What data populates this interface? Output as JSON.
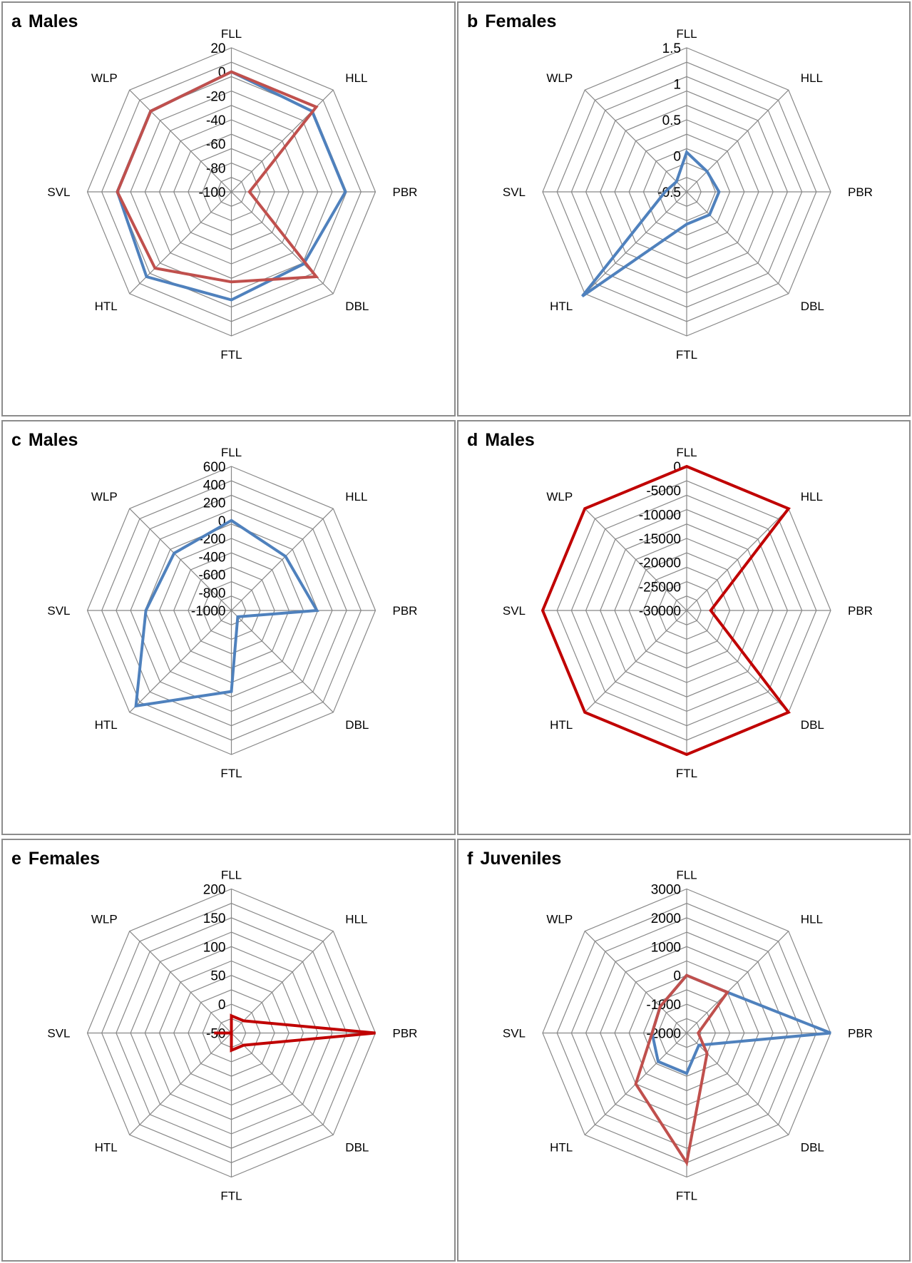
{
  "axes": [
    "FLL",
    "HLL",
    "PBR",
    "DBL",
    "FTL",
    "HTL",
    "SVL",
    "WLP"
  ],
  "colors": {
    "blue": "#4f81bd",
    "red": "#c0504d",
    "dark_red": "#c00000",
    "grid": "#888888"
  },
  "chart_data": [
    {
      "letter": "a",
      "title": "Males",
      "type": "radar",
      "axes": [
        "FLL",
        "HLL",
        "PBR",
        "DBL",
        "FTL",
        "HTL",
        "SVL",
        "WLP"
      ],
      "ylim": [
        -100,
        20
      ],
      "ticks": [
        "20",
        "0",
        "-20",
        "-40",
        "-60",
        "-80",
        "-100"
      ],
      "series": [
        {
          "color": "#4f81bd",
          "values": [
            0,
            -5,
            -5,
            -15,
            -10,
            0,
            -5,
            -5
          ]
        },
        {
          "color": "#c0504d",
          "values": [
            0,
            0,
            -85,
            0,
            -25,
            -10,
            -5,
            -5
          ]
        }
      ]
    },
    {
      "letter": "b",
      "title": "Females",
      "type": "radar",
      "axes": [
        "FLL",
        "HLL",
        "PBR",
        "DBL",
        "FTL",
        "HTL",
        "SVL",
        "WLP"
      ],
      "ylim": [
        -0.5,
        1.5
      ],
      "ticks": [
        "1.5",
        "1",
        "0.5",
        "0",
        "-0.5"
      ],
      "series": [
        {
          "color": "#4f81bd",
          "values": [
            0.05,
            -0.1,
            -0.05,
            -0.05,
            -0.05,
            1.55,
            -0.2,
            -0.3
          ]
        }
      ]
    },
    {
      "letter": "c",
      "title": "Males",
      "type": "radar",
      "axes": [
        "FLL",
        "HLL",
        "PBR",
        "DBL",
        "FTL",
        "HTL",
        "SVL",
        "WLP"
      ],
      "ylim": [
        -1000,
        600
      ],
      "ticks": [
        "600",
        "400",
        "200",
        "0",
        "-200",
        "-400",
        "-600",
        "-800",
        "-1000"
      ],
      "series": [
        {
          "color": "#4f81bd",
          "values": [
            0,
            -150,
            -50,
            -900,
            -100,
            500,
            -50,
            -100
          ]
        }
      ]
    },
    {
      "letter": "d",
      "title": "Males",
      "type": "radar",
      "axes": [
        "FLL",
        "HLL",
        "PBR",
        "DBL",
        "FTL",
        "HTL",
        "SVL",
        "WLP"
      ],
      "ylim": [
        -30000,
        0
      ],
      "ticks": [
        "0",
        "-5000",
        "-10000",
        "-15000",
        "-20000",
        "-25000",
        "-30000"
      ],
      "series": [
        {
          "color": "#c00000",
          "values": [
            0,
            0,
            -25000,
            0,
            0,
            0,
            0,
            0
          ]
        }
      ]
    },
    {
      "letter": "e",
      "title": "Females",
      "type": "radar",
      "axes": [
        "FLL",
        "HLL",
        "PBR",
        "DBL",
        "FTL",
        "HTL",
        "SVL",
        "WLP"
      ],
      "ylim": [
        -50,
        200
      ],
      "ticks": [
        "200",
        "150",
        "100",
        "50",
        "0",
        "-50"
      ],
      "series": [
        {
          "color": "#c00000",
          "values": [
            -20,
            -20,
            200,
            -20,
            -20,
            -50,
            -20,
            -50
          ]
        }
      ]
    },
    {
      "letter": "f",
      "title": "Juveniles",
      "type": "radar",
      "axes": [
        "FLL",
        "HLL",
        "PBR",
        "DBL",
        "FTL",
        "HTL",
        "SVL",
        "WLP"
      ],
      "ylim": [
        -2000,
        3000
      ],
      "ticks": [
        "3000",
        "2000",
        "1000",
        "0",
        "-1000",
        "-2000"
      ],
      "series": [
        {
          "color": "#4f81bd",
          "values": [
            0,
            0,
            3000,
            -1400,
            -600,
            -600,
            -800,
            -700
          ]
        },
        {
          "color": "#c0504d",
          "values": [
            0,
            0,
            -1600,
            -1000,
            2500,
            500,
            -800,
            -700
          ]
        }
      ]
    }
  ]
}
